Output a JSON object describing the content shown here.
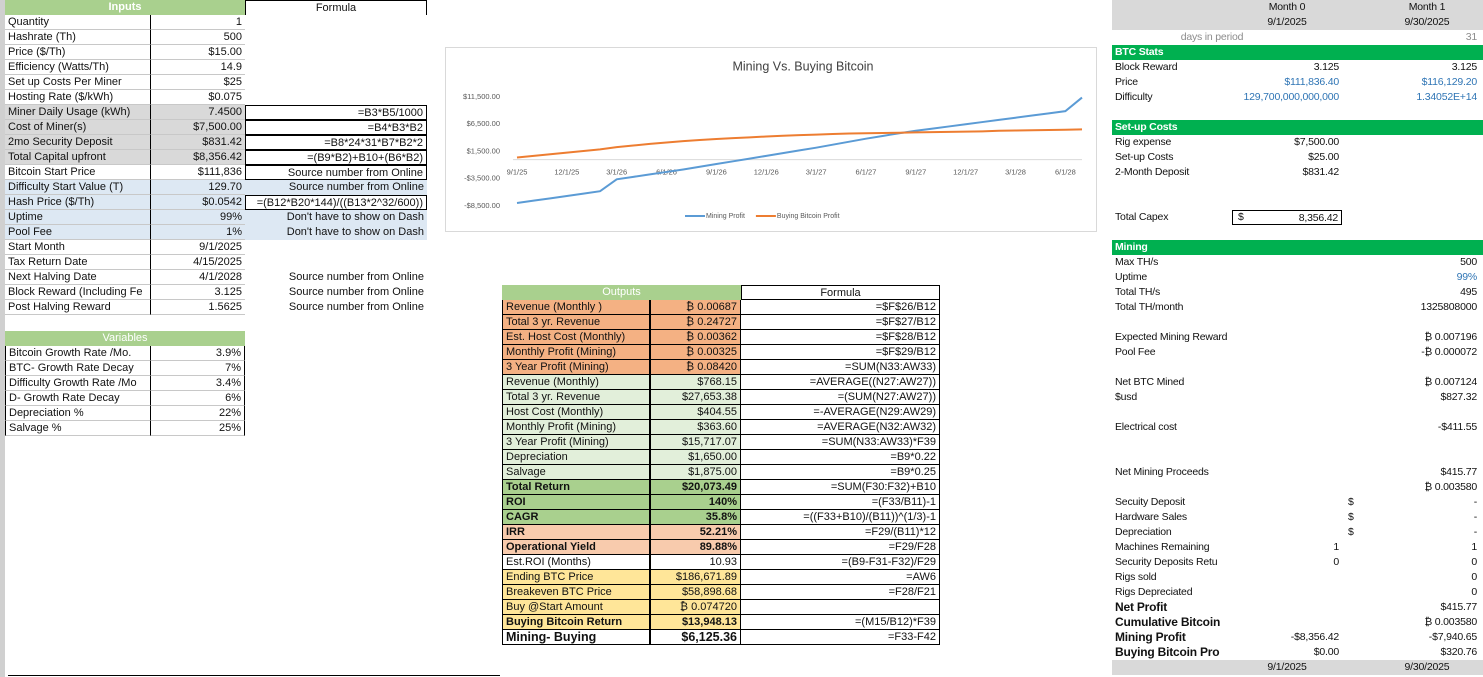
{
  "inputs": {
    "header": "Inputs",
    "formula_header": "Formula",
    "rows": [
      {
        "label": "Quantity",
        "value": "1"
      },
      {
        "label": "Hashrate (Th)",
        "value": "500"
      },
      {
        "label": "Price ($/Th)",
        "value": "$15.00"
      },
      {
        "label": "Efficiency (Watts/Th)",
        "value": "14.9"
      },
      {
        "label": "Set up Costs Per Miner",
        "value": "$25"
      },
      {
        "label": "Hosting Rate ($/kWh)",
        "value": "$0.075"
      },
      {
        "label": "Miner Daily Usage (kWh)",
        "value": "7.4500",
        "formula": "=B3*B5/1000"
      },
      {
        "label": "Cost of Miner(s)",
        "value": "$7,500.00",
        "formula": "=B4*B3*B2"
      },
      {
        "label": "2mo Security Deposit",
        "value": "$831.42",
        "formula": "=B8*24*31*B7*B2*2"
      },
      {
        "label": "Total Capital upfront",
        "value": "$8,356.42",
        "formula": "=(B9*B2)+B10+(B6*B2)"
      },
      {
        "label": "Bitcoin Start Price",
        "value": "$111,836",
        "formula": "Source number from Online"
      },
      {
        "label": "Difficulty Start Value (T)",
        "value": "129.70",
        "formula": "Source number from Online"
      },
      {
        "label": "Hash Price ($/Th)",
        "value": "$0.0542",
        "formula": "=(B12*B20*144)/((B13*2^32/600))"
      },
      {
        "label": "Uptime",
        "value": "99%",
        "formula": "Don't have to show on Dash"
      },
      {
        "label": "Pool Fee",
        "value": "1%",
        "formula": "Don't have to show on Dash"
      },
      {
        "label": "Start Month",
        "value": "9/1/2025"
      },
      {
        "label": "Tax Return Date",
        "value": "4/15/2025"
      },
      {
        "label": "Next Halving Date",
        "value": "4/1/2028",
        "formula": "Source number from Online"
      },
      {
        "label": "Block Reward (Including Fe",
        "value": "3.125",
        "formula": "Source number from Online"
      },
      {
        "label": "Post Halving Reward",
        "value": "1.5625",
        "formula": "Source number from Online"
      }
    ]
  },
  "variables": {
    "header": "Variables",
    "rows": [
      {
        "label": "Bitcoin Growth Rate /Mo.",
        "value": "3.9%"
      },
      {
        "label": "BTC- Growth Rate Decay",
        "value": "7%"
      },
      {
        "label": "Difficulty Growth Rate /Mo",
        "value": "3.4%"
      },
      {
        "label": "D- Growth Rate Decay",
        "value": "6%"
      },
      {
        "label": "Depreciation %",
        "value": "22%"
      },
      {
        "label": "Salvage %",
        "value": "25%"
      }
    ]
  },
  "outputs": {
    "header": "Outputs",
    "formula_header": "Formula",
    "rows": [
      {
        "label": "Revenue (Monthly )",
        "value": "₿ 0.00687",
        "formula": "=$F$26/B12"
      },
      {
        "label": "Total 3 yr. Revenue",
        "value": "₿ 0.24727",
        "formula": "=$F$27/B12"
      },
      {
        "label": "Est. Host Cost (Monthly)",
        "value": "₿ 0.00362",
        "formula": "=$F$28/B12"
      },
      {
        "label": "Monthly Profit (Mining)",
        "value": "₿ 0.00325",
        "formula": "=$F$29/B12"
      },
      {
        "label": "3 Year Profit (Mining)",
        "value": "₿ 0.08420",
        "formula": "=SUM(N33:AW33)"
      },
      {
        "label": "Revenue (Monthly)",
        "value": "$768.15",
        "formula": "=AVERAGE((N27:AW27))"
      },
      {
        "label": "Total 3 yr. Revenue",
        "value": "$27,653.38",
        "formula": "=(SUM(N27:AW27))"
      },
      {
        "label": "Host Cost (Monthly)",
        "value": "$404.55",
        "formula": "=-AVERAGE(N29:AW29)"
      },
      {
        "label": "Monthly Profit (Mining)",
        "value": "$363.60",
        "formula": "=AVERAGE(N32:AW32)"
      },
      {
        "label": "3 Year Profit (Mining)",
        "value": "$15,717.07",
        "formula": "=SUM(N33:AW33)*F39"
      },
      {
        "label": "Depreciation",
        "value": "$1,650.00",
        "formula": "=B9*0.22"
      },
      {
        "label": "Salvage",
        "value": "$1,875.00",
        "formula": "=B9*0.25"
      },
      {
        "label": "Total Return",
        "value": "$20,073.49",
        "formula": "=SUM(F30:F32)+B10"
      },
      {
        "label": "ROI",
        "value": "140%",
        "formula": "=(F33/B11)-1"
      },
      {
        "label": "CAGR",
        "value": "35.8%",
        "formula": "=((F33+B10)/(B11))^(1/3)-1"
      },
      {
        "label": "IRR",
        "value": "52.21%",
        "formula": "=F29/(B11)*12"
      },
      {
        "label": "Operational Yield",
        "value": "89.88%",
        "formula": "=F29/F28"
      },
      {
        "label": "Est.ROI (Months)",
        "value": "10.93",
        "formula": "=(B9-F31-F32)/F29"
      },
      {
        "label": "Ending BTC Price",
        "value": "$186,671.89",
        "formula": "=AW6"
      },
      {
        "label": "Breakeven BTC Price",
        "value": "$58,898.68",
        "formula": "=F28/F21"
      },
      {
        "label": "Buy @Start Amount",
        "value": "₿ 0.074720"
      },
      {
        "label": "Buying Bitcoin Return",
        "value": "$13,948.13",
        "formula": "=(M15/B12)*F39"
      },
      {
        "label": "Mining- Buying",
        "value": "$6,125.36",
        "formula": "=F33-F42"
      }
    ]
  },
  "chart_data": {
    "type": "line",
    "title": "Mining Vs. Buying Bitcoin",
    "categories": [
      "9/1/25",
      null,
      null,
      "12/1/25",
      null,
      null,
      "3/1/26",
      null,
      null,
      "6/1/26",
      null,
      null,
      "9/1/26",
      null,
      null,
      "12/1/26",
      null,
      null,
      "3/1/27",
      null,
      null,
      "6/1/27",
      null,
      null,
      "9/1/27",
      null,
      null,
      "12/1/27",
      null,
      null,
      "3/1/28",
      null,
      null,
      "6/1/28",
      null
    ],
    "series": [
      {
        "name": "Mining Profit",
        "color": "#5b9bd5",
        "values": [
          -7941,
          -7520,
          -7100,
          -6670,
          -6230,
          -5780,
          -3600,
          -3150,
          -2700,
          -2250,
          -1800,
          -1300,
          -800,
          -300,
          200,
          700,
          1200,
          1700,
          2200,
          2750,
          3300,
          3850,
          4350,
          4850,
          5300,
          5700,
          6100,
          6500,
          6900,
          7300,
          7700,
          8100,
          8500,
          8900,
          11400
        ]
      },
      {
        "name": "Buying Bitcoin Profit",
        "color": "#ed7d31",
        "values": [
          400,
          700,
          1000,
          1300,
          1600,
          1900,
          2300,
          2600,
          2900,
          3150,
          3400,
          3600,
          3800,
          3950,
          4100,
          4250,
          4400,
          4500,
          4600,
          4700,
          4800,
          4850,
          4900,
          4950,
          5000,
          5050,
          5100,
          5150,
          5200,
          5300,
          5350,
          5400,
          5450,
          5500,
          5550
        ]
      }
    ],
    "ylim": [
      -8500,
      11500
    ],
    "yticks": [
      {
        "value": 11500,
        "label": "$11,500.00"
      },
      {
        "value": 6500,
        "label": "$6,500.00"
      },
      {
        "value": 1500,
        "label": "$1,500.00"
      },
      {
        "value": -3500,
        "label": "-$3,500.00"
      },
      {
        "value": -8500,
        "label": "-$8,500.00"
      }
    ],
    "legend": "bottom"
  },
  "right_panel": {
    "months": [
      {
        "month": "Month 0",
        "date": "9/1/2025"
      },
      {
        "month": "Month 1",
        "date": "9/30/2025"
      }
    ],
    "days_label": "days in period",
    "days": "31",
    "rows": [
      {
        "label": "BTC Stats"
      },
      {
        "label": "Block Reward",
        "m0": "3.125",
        "m1": "3.125"
      },
      {
        "label": "Price",
        "m0": "$111,836.40",
        "m1": "$116,129.20"
      },
      {
        "label": "Difficulty",
        "m0": "129,700,000,000,000",
        "m1": "1.34052E+14"
      },
      {
        "label": "Set-up Costs"
      },
      {
        "label": "Rig expense",
        "m0": "$7,500.00"
      },
      {
        "label": "Set-up Costs",
        "m0": "$25.00"
      },
      {
        "label": "2-Month Deposit",
        "m0": "$831.42"
      },
      {
        "label": "Total Capex",
        "currency": "$",
        "m0": "8,356.42"
      },
      {
        "label": "Mining"
      },
      {
        "label": "Max TH/s",
        "m1": "500"
      },
      {
        "label": "Uptime",
        "m1": "99%"
      },
      {
        "label": "Total TH/s",
        "m1": "495"
      },
      {
        "label": "Total TH/month",
        "m1": "1325808000"
      },
      {
        "label": "Expected Mining Reward",
        "m1": "₿ 0.007196"
      },
      {
        "label": "Pool Fee",
        "m1": "-₿ 0.000072"
      },
      {
        "label": "Net BTC Mined",
        "m1": "₿ 0.007124"
      },
      {
        "label": "$usd",
        "m1": "$827.32"
      },
      {
        "label": "Electrical cost",
        "m1": "-$411.55"
      },
      {
        "label": "Net Mining Proceeds",
        "m1": "$415.77"
      },
      {
        "m1": "₿ 0.003580"
      },
      {
        "label": "Secuity Deposit",
        "currency": "$",
        "m1": "-"
      },
      {
        "label": "Hardware Sales",
        "currency": "$",
        "m1": "-"
      },
      {
        "label": "Depreciation",
        "currency": "$",
        "m1": "-"
      },
      {
        "label": "Machines Remaining",
        "m0": "1",
        "m1": "1"
      },
      {
        "label": "Security Deposits Retu",
        "m0": "0",
        "m1": "0"
      },
      {
        "label": "Rigs sold",
        "m1": "0"
      },
      {
        "label": "Rigs Depreciated",
        "m1": "0"
      },
      {
        "label": "Net Profit",
        "m1": "$415.77"
      },
      {
        "label": "Cumulative Bitcoin",
        "m1": "₿ 0.003580"
      },
      {
        "label": "Mining Profit",
        "m0": "-$8,356.42",
        "m1": "-$7,940.65"
      },
      {
        "label": "Buying Bitcoin Pro",
        "m0": "$0.00",
        "m1": "$320.76"
      }
    ],
    "footer": [
      "9/1/2025",
      "9/30/2025"
    ]
  }
}
